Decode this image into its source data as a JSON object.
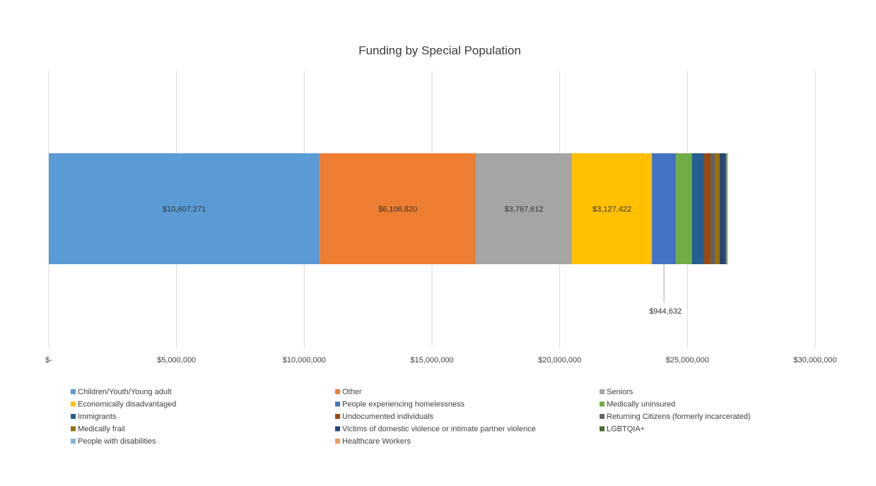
{
  "chart_data": {
    "type": "bar",
    "orientation": "horizontal",
    "stacked": true,
    "title": "Funding by Special Population",
    "xlabel": "",
    "ylabel": "",
    "xlim": [
      0,
      30000000
    ],
    "x_ticks": [
      0,
      5000000,
      10000000,
      15000000,
      20000000,
      25000000,
      30000000
    ],
    "x_tick_labels": [
      "$-",
      "$5,000,000",
      "$10,000,000",
      "$15,000,000",
      "$20,000,000",
      "$25,000,000",
      "$30,000,000"
    ],
    "grid": "vertical",
    "legend_position": "bottom",
    "series": [
      {
        "name": "Children/Youth/Young adult",
        "value": 10607271,
        "label": "$10,607,271",
        "color": "#5b9bd5"
      },
      {
        "name": "Other",
        "value": 6106820,
        "label": "$6,106,820",
        "color": "#ed7d31"
      },
      {
        "name": "Seniors",
        "value": 3767612,
        "label": "$3,767,612",
        "color": "#a5a5a5"
      },
      {
        "name": "Economically disadvantaged",
        "value": 3127422,
        "label": "$3,127,422",
        "color": "#ffc000"
      },
      {
        "name": "People experiencing homelessness",
        "value": 944632,
        "label": "$944,632",
        "color": "#4472c4"
      },
      {
        "name": "Medically uninsured",
        "value": 620000,
        "label": "",
        "color": "#70ad47"
      },
      {
        "name": "Immigrants",
        "value": 480000,
        "label": "",
        "color": "#255e91"
      },
      {
        "name": "Undocumented individuals",
        "value": 250000,
        "label": "",
        "color": "#9e480e"
      },
      {
        "name": "Returning Citizens (formerly incarcerated)",
        "value": 180000,
        "label": "",
        "color": "#636363"
      },
      {
        "name": "Medically frail",
        "value": 170000,
        "label": "",
        "color": "#997300"
      },
      {
        "name": "Victims of domestic violence or intimate partner violence",
        "value": 220000,
        "label": "",
        "color": "#264478"
      },
      {
        "name": "LGBTQIA+",
        "value": 60000,
        "label": "",
        "color": "#43682b"
      },
      {
        "name": "People with disabilities",
        "value": 30000,
        "label": "",
        "color": "#7cafdd"
      },
      {
        "name": "Healthcare Workers",
        "value": 20000,
        "label": "",
        "color": "#f1975a"
      }
    ]
  }
}
